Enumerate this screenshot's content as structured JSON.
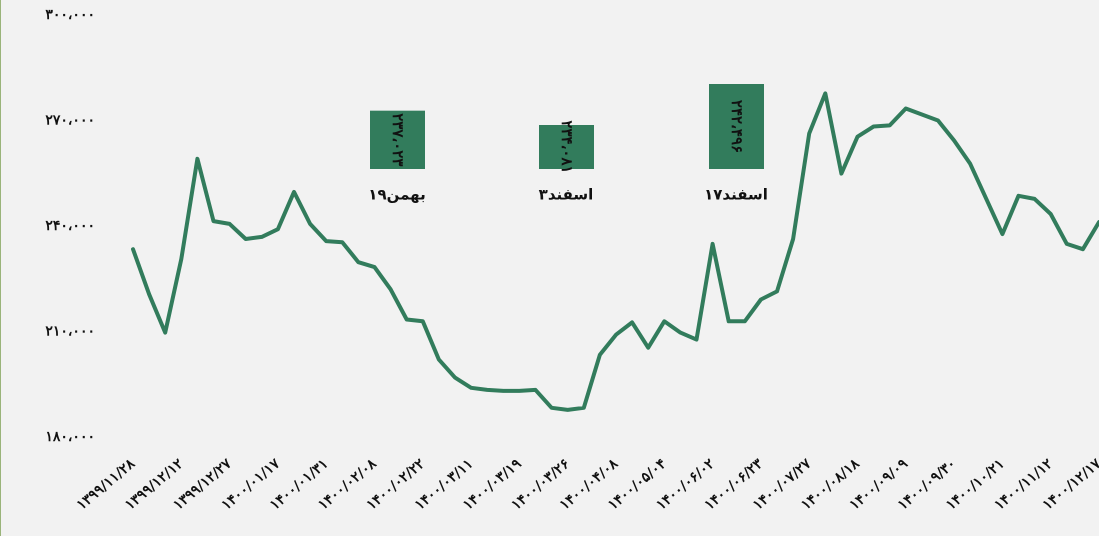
{
  "chart_data": {
    "type": "line",
    "categories": [
      "۱۳۹۹/۱۱/۲۸",
      null,
      null,
      "۱۳۹۹/۱۲/۱۲",
      null,
      null,
      "۱۳۹۹/۱۲/۲۷",
      null,
      null,
      "۱۴۰۰/۰۱/۱۷",
      null,
      null,
      "۱۴۰۰/۰۱/۳۱",
      null,
      null,
      "۱۴۰۰/۰۲/۰۸",
      null,
      null,
      "۱۴۰۰/۰۲/۲۲",
      null,
      null,
      "۱۴۰۰/۰۳/۱۱",
      null,
      null,
      "۱۴۰۰/۰۳/۱۹",
      null,
      null,
      "۱۴۰۰/۰۳/۲۶",
      null,
      null,
      "۱۴۰۰/۰۴/۰۸",
      null,
      null,
      "۱۴۰۰/۰۵/۰۴",
      null,
      null,
      "۱۴۰۰/۰۶/۰۲",
      null,
      null,
      "۱۴۰۰/۰۶/۲۳",
      null,
      null,
      "۱۴۰۰/۰۷/۲۷",
      null,
      null,
      "۱۴۰۰/۰۸/۱۸",
      null,
      null,
      "۱۴۰۰/۰۹/۰۹",
      null,
      null,
      "۱۴۰۰/۰۹/۳۰",
      null,
      null,
      "۱۴۰۰/۱۰/۲۱",
      null,
      null,
      "۱۴۰۰/۱۱/۱۲",
      null,
      null,
      "۱۴۰۰/۱۲/۱۷"
    ],
    "series": [
      {
        "color": "#327c5c",
        "values": [
          233400,
          220600,
          209700,
          230600,
          259100,
          241400,
          240600,
          236300,
          236900,
          239100,
          249700,
          240600,
          235700,
          235400,
          229700,
          228300,
          222000,
          213400,
          212900,
          202000,
          196900,
          194000,
          193400,
          193100,
          193100,
          193400,
          188300,
          187700,
          188300,
          203400,
          209100,
          212600,
          205400,
          212900,
          209700,
          207700,
          234900,
          212900,
          212900,
          219100,
          221400,
          236300,
          266300,
          277700,
          254900,
          265400,
          268300,
          268600,
          273400,
          271700,
          270000,
          264300,
          257700,
          247700,
          237700,
          248600,
          247700,
          243400,
          234900,
          233400,
          241100
        ]
      }
    ],
    "ylim": [
      180000,
      300000
    ],
    "yticks": [
      {
        "value": 180000,
        "label": "۱۸۰،۰۰۰"
      },
      {
        "value": 210000,
        "label": "۲۱۰،۰۰۰"
      },
      {
        "value": 240000,
        "label": "۲۴۰،۰۰۰"
      },
      {
        "value": 270000,
        "label": "۲۷۰،۰۰۰"
      },
      {
        "value": 300000,
        "label": "۳۰۰،۰۰۰"
      }
    ],
    "highlights": {
      "color": "#327c5c",
      "labels": [
        "۱۹بهمن",
        "۳اسفند",
        "۱۷اسفند"
      ],
      "values": [
        237023,
        234081,
        242496
      ],
      "value_labels": [
        "۲۳۷،۰۲۳",
        "۲۳۴،۰۸۱",
        "۲۴۲،۴۹۶"
      ]
    }
  }
}
